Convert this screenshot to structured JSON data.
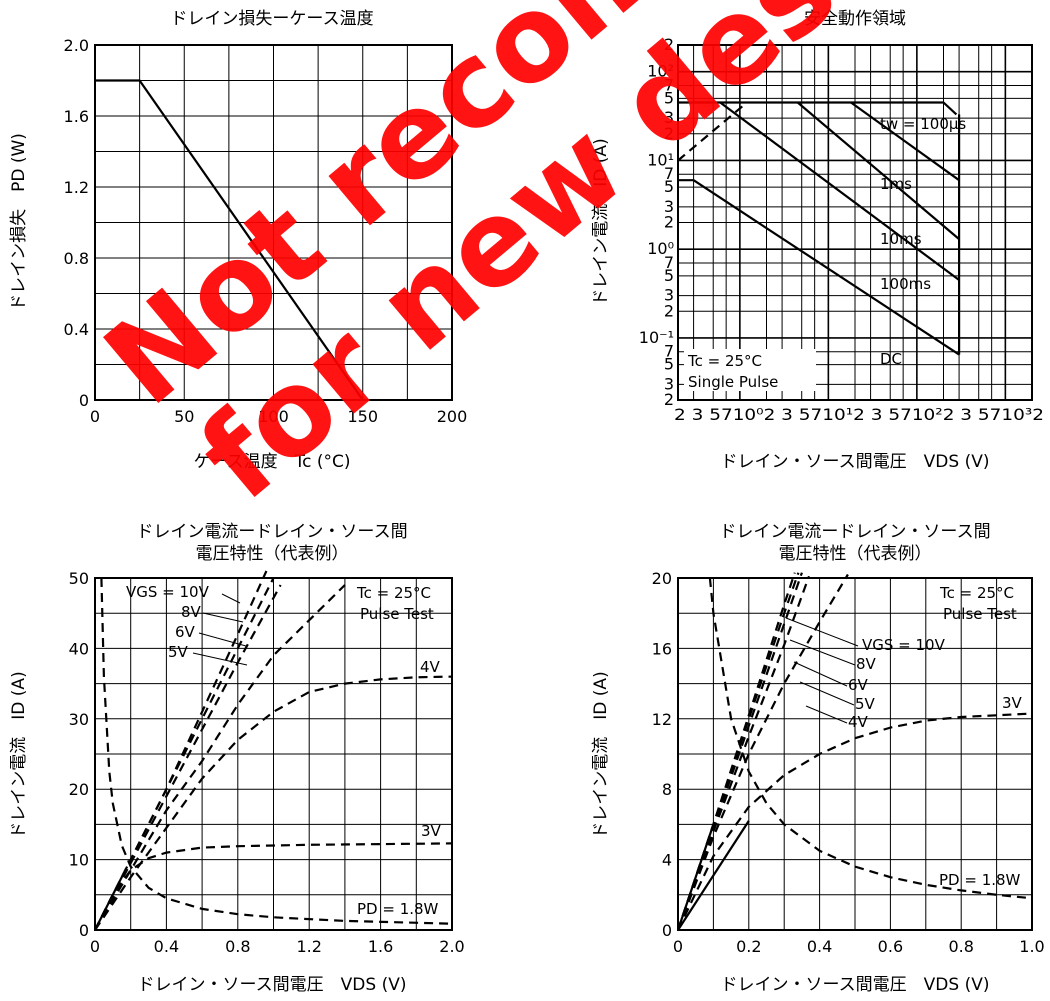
{
  "chart_data": [
    {
      "id": "c1",
      "type": "line",
      "title": "ドレイン損失ーケース温度",
      "xlabel": "ケース温度　Tc (°C)",
      "ylabel": "ドレイン損失　PD (W)",
      "xlim": [
        0,
        200
      ],
      "ylim": [
        0,
        2.0
      ],
      "x_ticks": [
        "0",
        "50",
        "100",
        "150",
        "200"
      ],
      "y_ticks": [
        "0",
        "0.4",
        "0.8",
        "1.2",
        "1.6",
        "2.0"
      ],
      "grid": true,
      "series": [
        {
          "points": [
            [
              0,
              1.8
            ],
            [
              25,
              1.8
            ],
            [
              150,
              0
            ]
          ]
        }
      ]
    },
    {
      "id": "c2",
      "type": "line",
      "title": "安全動作領域",
      "xlabel": "ドレイン・ソース間電圧　VDS (V)",
      "ylabel": "ドレイン電流　ID (A)",
      "x_scale": "log",
      "y_scale": "log",
      "xlim": [
        0.02,
        200
      ],
      "ylim": [
        0.02,
        200
      ],
      "x_tick_text": "2 3  5710⁰2 3  5710¹2 3  5710²2 3  5710³2",
      "y_ticks": [
        {
          "v": 200,
          "t": "2"
        },
        {
          "v": 100,
          "t": "10²"
        },
        {
          "v": 70,
          "t": "7"
        },
        {
          "v": 50,
          "t": "5"
        },
        {
          "v": 30,
          "t": "3"
        },
        {
          "v": 20,
          "t": "2"
        },
        {
          "v": 10,
          "t": "10¹"
        },
        {
          "v": 7,
          "t": "7"
        },
        {
          "v": 5,
          "t": "5"
        },
        {
          "v": 3,
          "t": "3"
        },
        {
          "v": 2,
          "t": "2"
        },
        {
          "v": 1,
          "t": "10⁰"
        },
        {
          "v": 0.7,
          "t": "7"
        },
        {
          "v": 0.5,
          "t": "5"
        },
        {
          "v": 0.3,
          "t": "3"
        },
        {
          "v": 0.2,
          "t": "2"
        },
        {
          "v": 0.1,
          "t": "10⁻¹"
        },
        {
          "v": 0.07,
          "t": "7"
        },
        {
          "v": 0.05,
          "t": "5"
        },
        {
          "v": 0.03,
          "t": "3"
        },
        {
          "v": 0.02,
          "t": "2"
        }
      ],
      "grid": true,
      "annotations": [
        "tw = 100μs",
        "1ms",
        "10ms",
        "100ms",
        "DC",
        "Tc = 25°C",
        "Single Pulse"
      ],
      "series": [
        {
          "name": "DC",
          "points": [
            [
              0.02,
              6
            ],
            [
              0.03,
              6
            ],
            [
              30,
              0.065
            ]
          ]
        },
        {
          "name": "100ms",
          "points": [
            [
              0.02,
              45
            ],
            [
              0.06,
              45
            ],
            [
              30,
              0.45
            ]
          ]
        },
        {
          "name": "10ms",
          "points": [
            [
              0.45,
              45
            ],
            [
              30,
              1.3
            ]
          ]
        },
        {
          "name": "1ms",
          "points": [
            [
              1.8,
              45
            ],
            [
              30,
              6
            ]
          ]
        },
        {
          "name": "tw = 100μs",
          "points": [
            [
              0.06,
              45
            ],
            [
              20,
              45
            ],
            [
              28,
              33
            ]
          ]
        },
        {
          "name": "limit",
          "style": "dashed",
          "points": [
            [
              0.02,
              10
            ],
            [
              0.12,
              45
            ]
          ]
        },
        {
          "name": "vertical",
          "points": [
            [
              30,
              0.065
            ],
            [
              30,
              33
            ]
          ]
        }
      ]
    },
    {
      "id": "c3",
      "type": "line",
      "title": "ドレイン電流ードレイン・ソース間",
      "title2": "電圧特性（代表例）",
      "xlabel": "ドレイン・ソース間電圧　VDS (V)",
      "ylabel": "ドレイン電流　ID (A)",
      "xlim": [
        0,
        2.0
      ],
      "ylim": [
        0,
        50
      ],
      "x_ticks": [
        "0",
        "0.4",
        "0.8",
        "1.2",
        "1.6",
        "2.0"
      ],
      "y_ticks": [
        "0",
        "10",
        "20",
        "30",
        "40",
        "50"
      ],
      "grid": true,
      "annotations": [
        "VGS = 10V",
        "8V",
        "6V",
        "5V",
        "4V",
        "3V",
        "Tc = 25°C",
        "Pulse Test",
        "PD = 1.8W"
      ],
      "series": [
        {
          "name": "VGS = 10V",
          "style": "dashed",
          "points": [
            [
              0,
              0
            ],
            [
              0.2,
              10
            ],
            [
              0.4,
              20
            ],
            [
              0.6,
              31
            ],
            [
              0.8,
              42
            ],
            [
              0.96,
              51
            ]
          ]
        },
        {
          "name": "8V",
          "style": "dashed",
          "points": [
            [
              0,
              0
            ],
            [
              0.2,
              10
            ],
            [
              0.4,
              20
            ],
            [
              0.6,
              30
            ],
            [
              0.8,
              40
            ],
            [
              1.0,
              50
            ]
          ]
        },
        {
          "name": "6V",
          "style": "dashed",
          "points": [
            [
              0,
              0
            ],
            [
              0.2,
              9.5
            ],
            [
              0.4,
              19
            ],
            [
              0.6,
              28.5
            ],
            [
              0.8,
              38
            ],
            [
              1.04,
              49
            ]
          ]
        },
        {
          "name": "5V",
          "style": "dashed",
          "points": [
            [
              0,
              0
            ],
            [
              0.2,
              8.5
            ],
            [
              0.4,
              17
            ],
            [
              0.6,
              24
            ],
            [
              0.8,
              32
            ],
            [
              1.0,
              39
            ],
            [
              1.2,
              44
            ],
            [
              1.4,
              49
            ]
          ]
        },
        {
          "name": "4V",
          "style": "dashed",
          "points": [
            [
              0,
              0
            ],
            [
              0.2,
              7.5
            ],
            [
              0.4,
              14.5
            ],
            [
              0.6,
              21.5
            ],
            [
              0.8,
              27
            ],
            [
              1.0,
              31
            ],
            [
              1.2,
              33.8
            ],
            [
              1.4,
              35
            ],
            [
              1.6,
              35.6
            ],
            [
              1.8,
              35.9
            ],
            [
              2.0,
              36
            ]
          ]
        },
        {
          "name": "3V",
          "style": "dashed",
          "points": [
            [
              0,
              0
            ],
            [
              0.1,
              5
            ],
            [
              0.2,
              8.5
            ],
            [
              0.3,
              10.2
            ],
            [
              0.4,
              11
            ],
            [
              0.6,
              11.7
            ],
            [
              0.8,
              11.9
            ],
            [
              1.2,
              12.1
            ],
            [
              1.6,
              12.2
            ],
            [
              2.0,
              12.3
            ]
          ]
        },
        {
          "name": "PD = 1.8W",
          "style": "dashed",
          "points": [
            [
              0.036,
              50
            ],
            [
              0.05,
              36
            ],
            [
              0.08,
              22.5
            ],
            [
              0.1,
              18
            ],
            [
              0.15,
              12
            ],
            [
              0.2,
              9
            ],
            [
              0.3,
              6
            ],
            [
              0.4,
              4.5
            ],
            [
              0.6,
              3
            ],
            [
              0.8,
              2.25
            ],
            [
              1.0,
              1.8
            ],
            [
              1.4,
              1.29
            ],
            [
              2.0,
              0.9
            ]
          ]
        },
        {
          "name": "solid",
          "points": [
            [
              0,
              0
            ],
            [
              0.18,
              9
            ]
          ]
        }
      ]
    },
    {
      "id": "c4",
      "type": "line",
      "title": "ドレイン電流ードレイン・ソース間",
      "title2": "電圧特性（代表例）",
      "xlabel": "ドレイン・ソース間電圧　VDS (V)",
      "ylabel": "ドレイン電流　ID (A)",
      "xlim": [
        0,
        1.0
      ],
      "ylim": [
        0,
        20
      ],
      "x_ticks": [
        "0",
        "0.2",
        "0.4",
        "0.6",
        "0.8",
        "1.0"
      ],
      "y_ticks": [
        "0",
        "4",
        "8",
        "12",
        "16",
        "20"
      ],
      "grid": true,
      "annotations": [
        "Tc = 25°C",
        "Pulse Test",
        "VGS = 10V",
        "8V",
        "6V",
        "5V",
        "4V",
        "3V",
        "PD = 1.8W"
      ],
      "series": [
        {
          "name": "VGS = 10V",
          "style": "dashed",
          "points": [
            [
              0,
              0
            ],
            [
              0.1,
              6
            ],
            [
              0.2,
              12.2
            ],
            [
              0.3,
              18.5
            ],
            [
              0.33,
              20.3
            ]
          ]
        },
        {
          "name": "8V",
          "style": "dashed",
          "points": [
            [
              0,
              0
            ],
            [
              0.1,
              6
            ],
            [
              0.2,
              12
            ],
            [
              0.3,
              18
            ],
            [
              0.34,
              20.3
            ]
          ]
        },
        {
          "name": "6V",
          "style": "dashed",
          "points": [
            [
              0,
              0
            ],
            [
              0.1,
              5.8
            ],
            [
              0.2,
              11.6
            ],
            [
              0.3,
              17.4
            ],
            [
              0.35,
              20.3
            ]
          ]
        },
        {
          "name": "5V",
          "style": "dashed",
          "points": [
            [
              0,
              0
            ],
            [
              0.1,
              5.6
            ],
            [
              0.2,
              11
            ],
            [
              0.3,
              16.2
            ],
            [
              0.37,
              20.1
            ]
          ]
        },
        {
          "name": "4V",
          "style": "dashed",
          "points": [
            [
              0,
              0
            ],
            [
              0.1,
              5.3
            ],
            [
              0.2,
              10
            ],
            [
              0.3,
              14
            ],
            [
              0.4,
              17.5
            ],
            [
              0.48,
              20.2
            ]
          ]
        },
        {
          "name": "3V",
          "style": "dashed",
          "points": [
            [
              0,
              0
            ],
            [
              0.1,
              4.2
            ],
            [
              0.2,
              7
            ],
            [
              0.3,
              8.8
            ],
            [
              0.4,
              10
            ],
            [
              0.5,
              10.9
            ],
            [
              0.6,
              11.5
            ],
            [
              0.7,
              11.9
            ],
            [
              0.8,
              12.1
            ],
            [
              0.9,
              12.2
            ],
            [
              1.0,
              12.3
            ]
          ]
        },
        {
          "name": "PD = 1.8W",
          "style": "dashed",
          "points": [
            [
              0.09,
              20
            ],
            [
              0.1,
              18
            ],
            [
              0.15,
              12
            ],
            [
              0.2,
              9
            ],
            [
              0.25,
              7.2
            ],
            [
              0.3,
              6
            ],
            [
              0.4,
              4.5
            ],
            [
              0.5,
              3.6
            ],
            [
              0.6,
              3
            ],
            [
              0.7,
              2.57
            ],
            [
              0.8,
              2.25
            ],
            [
              0.9,
              2
            ],
            [
              1.0,
              1.8
            ]
          ]
        },
        {
          "name": "solid",
          "points": [
            [
              0,
              0
            ],
            [
              0.1,
              6
            ]
          ]
        },
        {
          "name": "solid2",
          "points": [
            [
              0,
              0
            ],
            [
              0.2,
              6.2
            ]
          ]
        }
      ]
    }
  ],
  "watermark": [
    "Not recommended",
    "for new design"
  ]
}
